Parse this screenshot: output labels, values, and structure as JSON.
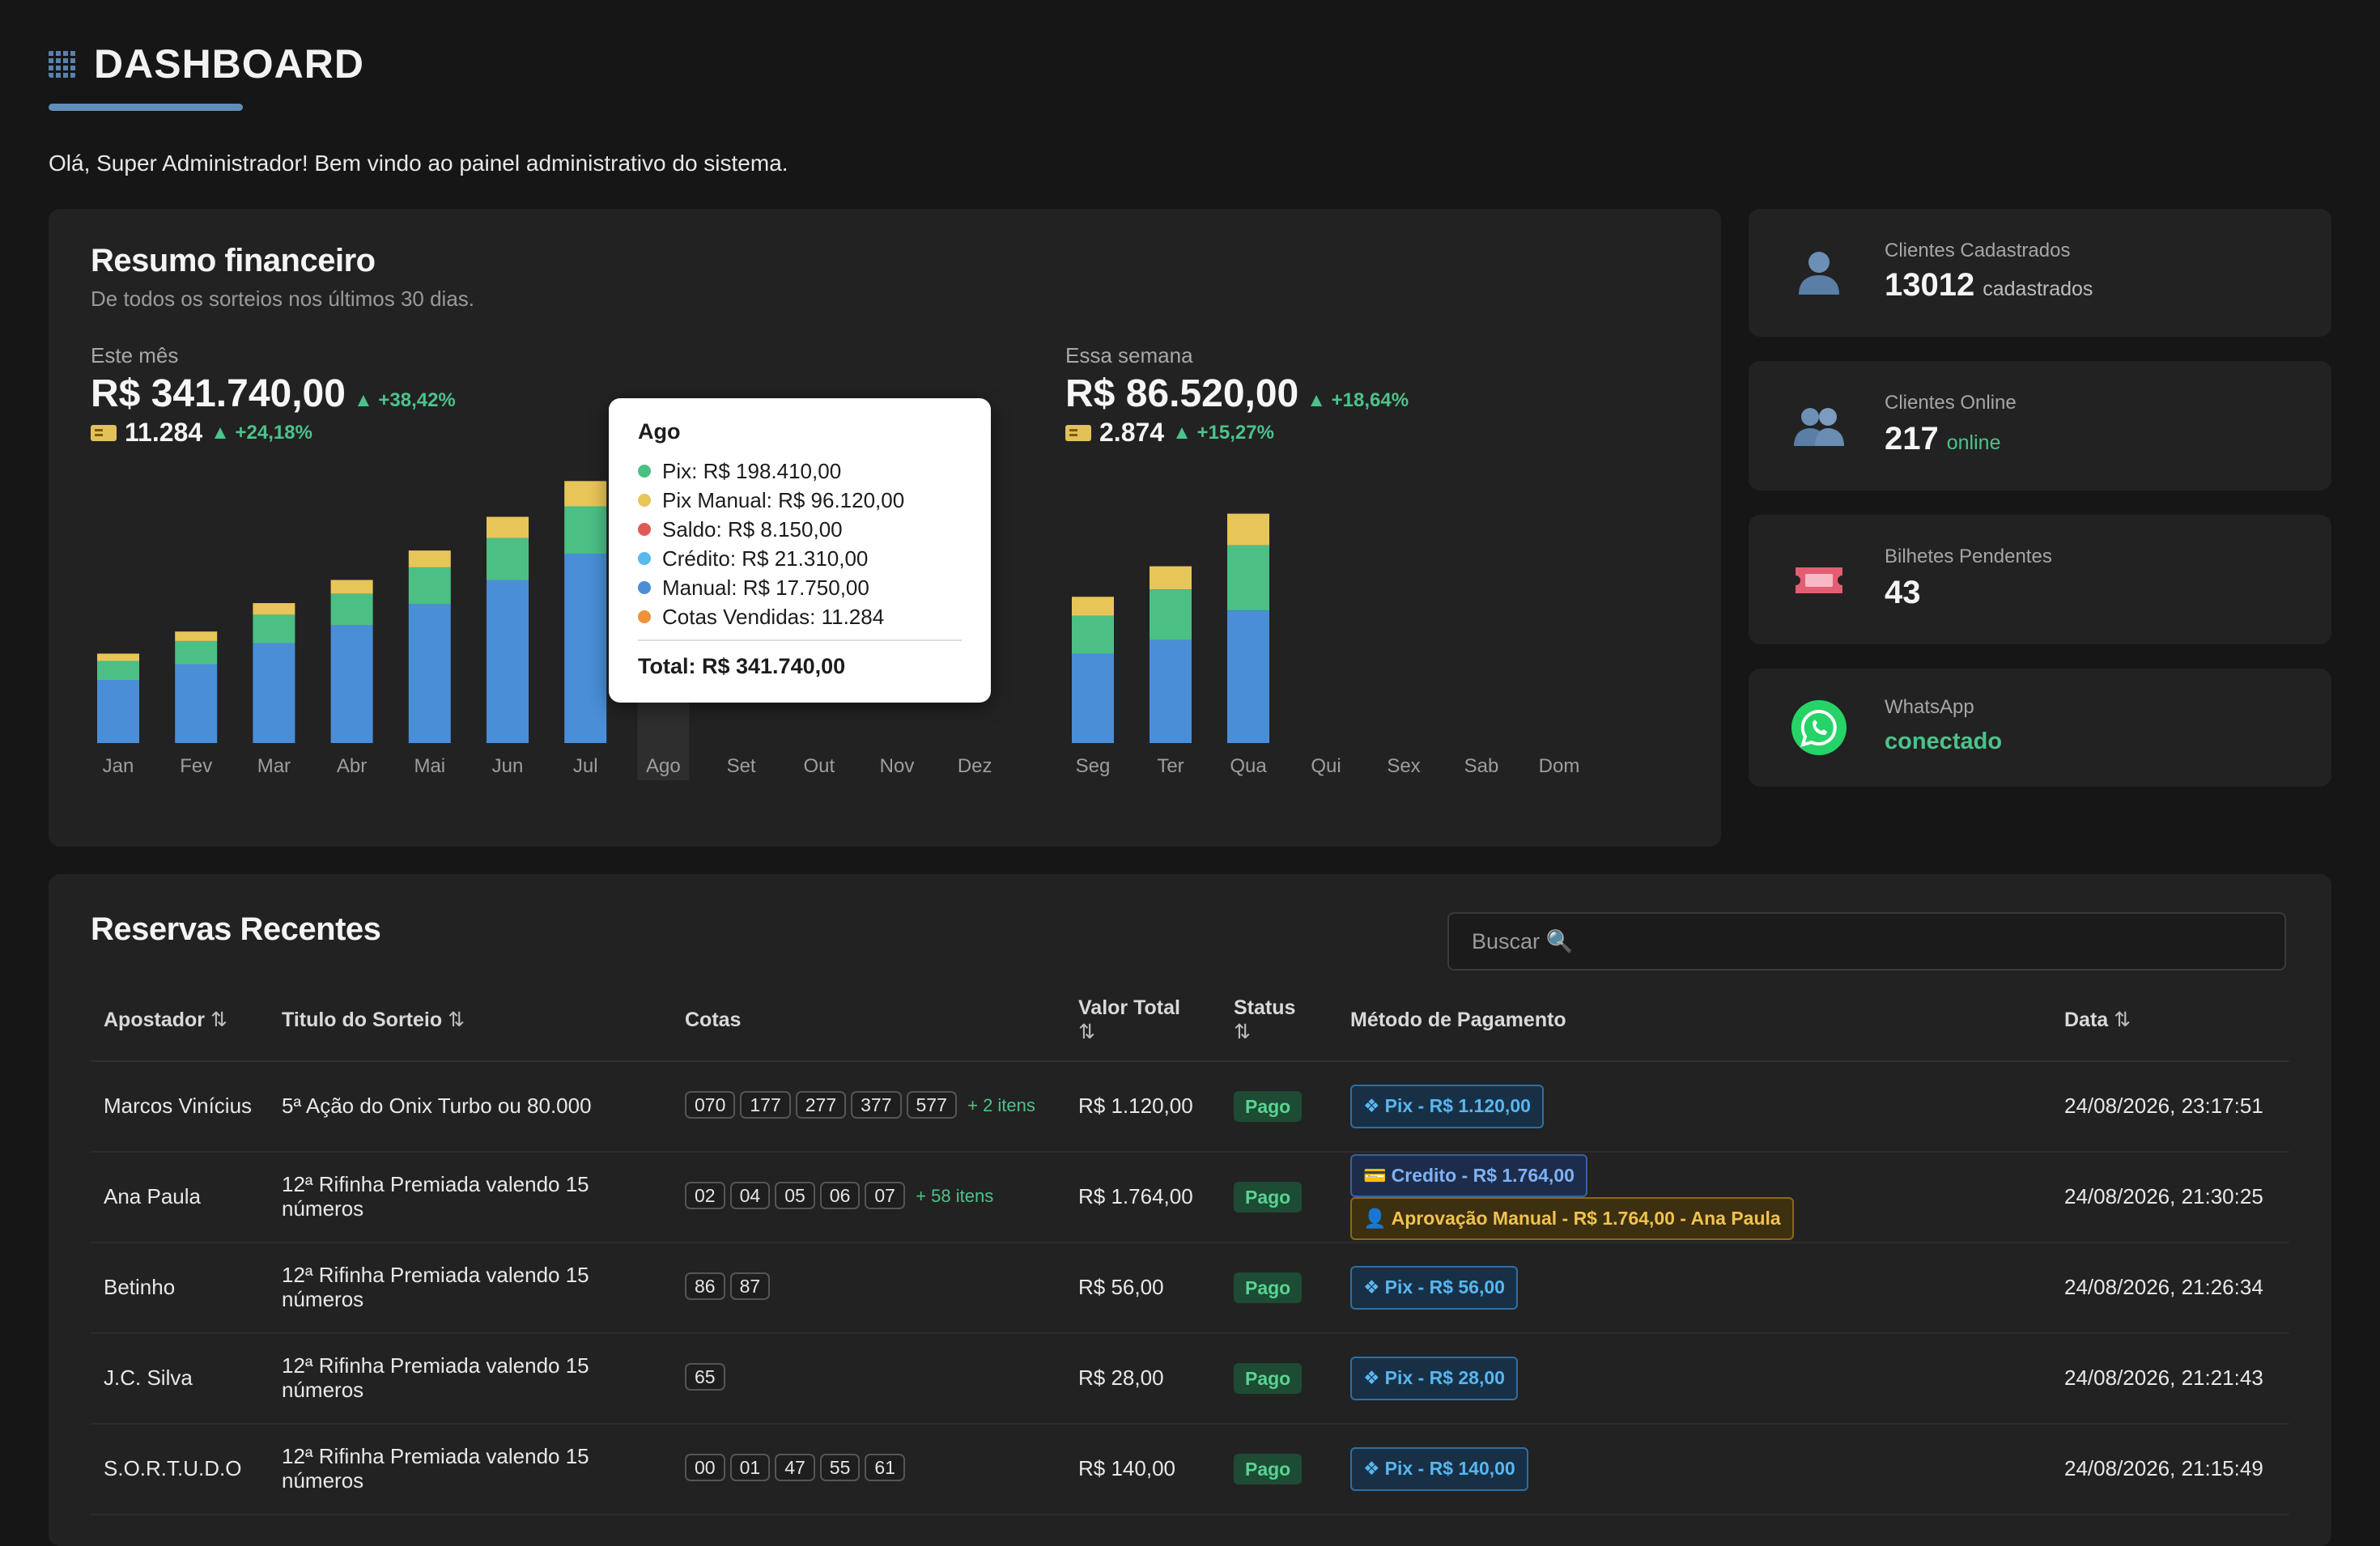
{
  "header": {
    "title": "DASHBOARD",
    "welcome": "Olá, Super Administrador! Bem vindo ao painel administrativo do sistema."
  },
  "financeiro": {
    "title": "Resumo financeiro",
    "subtitle": "De todos os sorteios nos últimos 30 dias.",
    "mes": {
      "label": "Este mês",
      "value": "R$ 341.740,00",
      "delta": "+38,42%",
      "tickets": "11.284",
      "tickets_delta": "+24,18%"
    },
    "semana": {
      "label": "Essa semana",
      "value": "R$ 86.520,00",
      "delta": "+18,64%",
      "tickets": "2.874",
      "tickets_delta": "+15,27%"
    },
    "tooltip": {
      "title": "Ago",
      "rows": [
        {
          "text": "Pix: R$ 198.410,00",
          "color": "#4cbf85"
        },
        {
          "text": "Pix Manual: R$ 96.120,00",
          "color": "#e8c558"
        },
        {
          "text": "Saldo: R$ 8.150,00",
          "color": "#e05a5a"
        },
        {
          "text": "Crédito: R$ 21.310,00",
          "color": "#58b9ef"
        },
        {
          "text": "Manual: R$ 17.750,00",
          "color": "#4a8ed8"
        },
        {
          "text": "Cotas Vendidas: 11.284",
          "color": "#f0913c"
        }
      ],
      "total": "Total: R$ 341.740,00"
    }
  },
  "chart_data": [
    {
      "type": "bar",
      "categories": [
        "Jan",
        "Fev",
        "Mar",
        "Abr",
        "Mai",
        "Jun",
        "Jul",
        "Ago",
        "Set",
        "Out",
        "Nov",
        "Dez"
      ],
      "series": [
        {
          "values": [
            60,
            75,
            95,
            112,
            132,
            155,
            180,
            0,
            0,
            0,
            0,
            0
          ],
          "color": "#4a8ed8"
        },
        {
          "values": [
            18,
            22,
            27,
            30,
            35,
            40,
            45,
            0,
            0,
            0,
            0,
            0
          ],
          "color": "#4cbf85"
        },
        {
          "values": [
            7,
            9,
            11,
            13,
            16,
            20,
            24,
            0,
            0,
            0,
            0,
            0
          ],
          "color": "#e8c558"
        }
      ],
      "highlight": "Ago"
    },
    {
      "type": "bar",
      "categories": [
        "Seg",
        "Ter",
        "Qua",
        "Qui",
        "Sex",
        "Sab",
        "Dom"
      ],
      "series": [
        {
          "values": [
            85,
            98,
            126,
            0,
            0,
            0,
            0
          ],
          "color": "#4a8ed8"
        },
        {
          "values": [
            36,
            48,
            62,
            0,
            0,
            0,
            0
          ],
          "color": "#4cbf85"
        },
        {
          "values": [
            18,
            22,
            30,
            0,
            0,
            0,
            0
          ],
          "color": "#e8c558"
        }
      ]
    }
  ],
  "stats": [
    {
      "label": "Clientes Cadastrados",
      "value": "13012",
      "unit": "cadastrados",
      "icon": "user-icon"
    },
    {
      "label": "Clientes Online",
      "value": "217",
      "unit": "online",
      "icon": "users-icon"
    },
    {
      "label": "Bilhetes Pendentes",
      "value": "43",
      "unit": "",
      "icon": "ticket-icon"
    },
    {
      "label": "WhatsApp",
      "value": "conectado",
      "unit": "",
      "icon": "whatsapp-icon"
    }
  ],
  "reservas": {
    "title": "Reservas Recentes",
    "search_placeholder": "Buscar 🔍",
    "columns": {
      "apostador": "Apostador",
      "titulo": "Titulo do Sorteio",
      "cotas": "Cotas",
      "valor": "Valor Total",
      "status": "Status",
      "metodo": "Método de Pagamento",
      "data": "Data",
      "sort": "⇅"
    },
    "rows": [
      {
        "apostador": "Marcos Vinícius",
        "titulo": "5ª Ação do Onix Turbo ou 80.000",
        "cotas": [
          "070",
          "177",
          "277",
          "377",
          "577"
        ],
        "more": "+ 2 itens",
        "valor": "R$ 1.120,00",
        "status": "Pago",
        "pagamentos": [
          {
            "kind": "pix",
            "icon": "❖",
            "text": "Pix - R$ 1.120,00"
          }
        ],
        "data": "24/08/2026, 23:17:51"
      },
      {
        "apostador": "Ana Paula",
        "titulo": "12ª Rifinha Premiada valendo 15 números",
        "cotas": [
          "02",
          "04",
          "05",
          "06",
          "07"
        ],
        "more": "+ 58 itens",
        "valor": "R$ 1.764,00",
        "status": "Pago",
        "pagamentos": [
          {
            "kind": "credito",
            "icon": "💳",
            "text": "Credito - R$ 1.764,00"
          },
          {
            "kind": "manual",
            "icon": "👤",
            "text": "Aprovação Manual - R$ 1.764,00 - Ana Paula"
          }
        ],
        "data": "24/08/2026, 21:30:25"
      },
      {
        "apostador": "Betinho",
        "titulo": "12ª Rifinha Premiada valendo 15 números",
        "cotas": [
          "86",
          "87"
        ],
        "more": "",
        "valor": "R$ 56,00",
        "status": "Pago",
        "pagamentos": [
          {
            "kind": "pix",
            "icon": "❖",
            "text": "Pix - R$ 56,00"
          }
        ],
        "data": "24/08/2026, 21:26:34"
      },
      {
        "apostador": "J.C. Silva",
        "titulo": "12ª Rifinha Premiada valendo 15 números",
        "cotas": [
          "65"
        ],
        "more": "",
        "valor": "R$ 28,00",
        "status": "Pago",
        "pagamentos": [
          {
            "kind": "pix",
            "icon": "❖",
            "text": "Pix - R$ 28,00"
          }
        ],
        "data": "24/08/2026, 21:21:43"
      },
      {
        "apostador": "S.O.R.T.U.D.O",
        "titulo": "12ª Rifinha Premiada valendo 15 números",
        "cotas": [
          "00",
          "01",
          "47",
          "55",
          "61"
        ],
        "more": "",
        "valor": "R$ 140,00",
        "status": "Pago",
        "pagamentos": [
          {
            "kind": "pix",
            "icon": "❖",
            "text": "Pix - R$ 140,00"
          }
        ],
        "data": "24/08/2026, 21:15:49"
      }
    ]
  }
}
